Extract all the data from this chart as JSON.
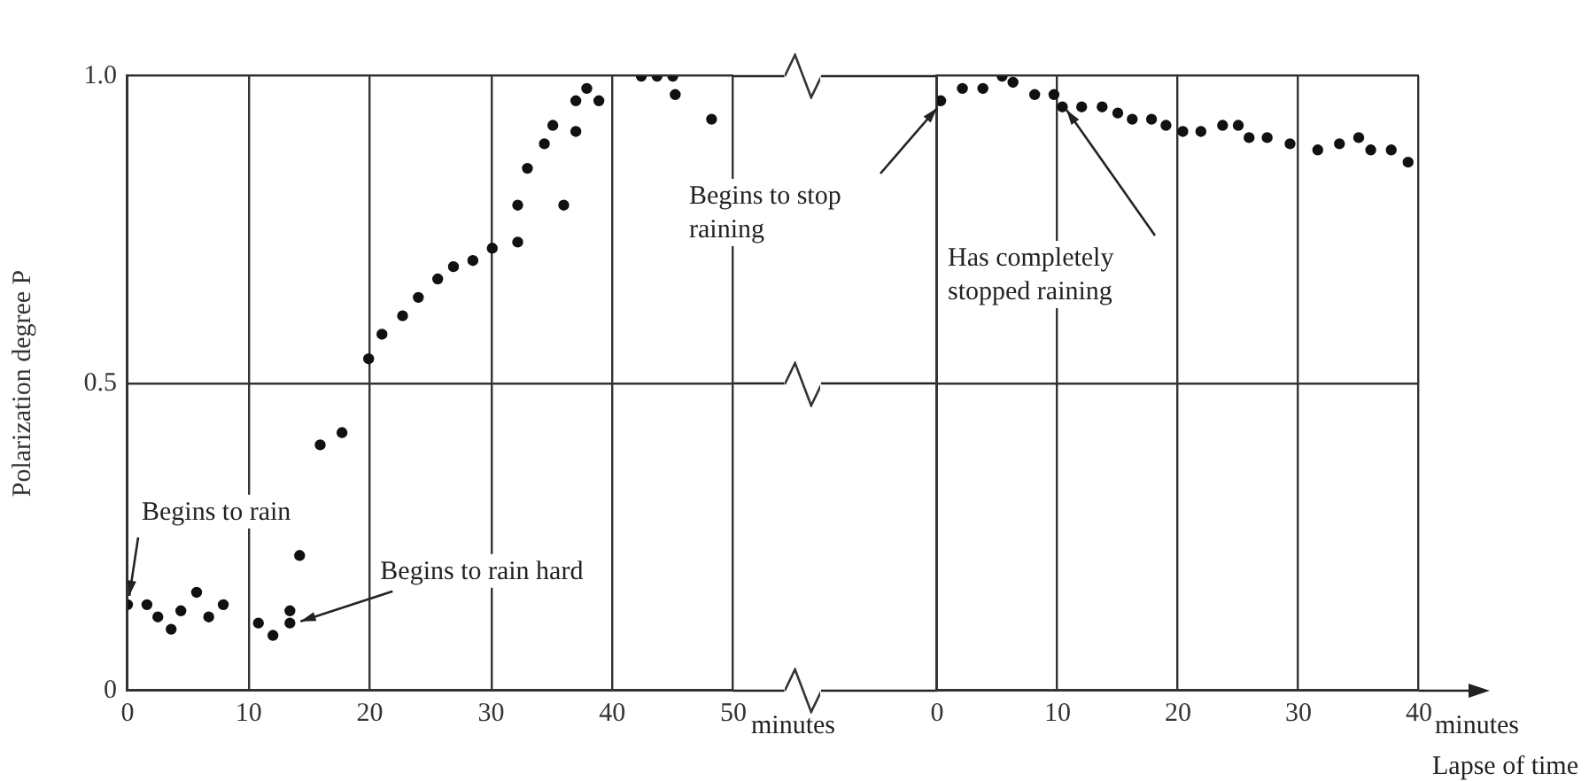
{
  "chart_data": [
    {
      "type": "scatter",
      "ylabel": "Polarization degree P",
      "xlabel": "minutes",
      "color": "#111111",
      "marker": "circle",
      "grid": true,
      "x": [
        0,
        1.6,
        2.5,
        3.6,
        4.4,
        5.7,
        6.7,
        7.9,
        10.8,
        12,
        13.4,
        13.4,
        14.2,
        15.9,
        17.7,
        19.9,
        21,
        22.7,
        24,
        25.6,
        26.9,
        28.5,
        30.1,
        32.2,
        32.2,
        33,
        34.4,
        35.1,
        36,
        37,
        37,
        37.9,
        38.9,
        42.4,
        43.7,
        45,
        45.2,
        48.2
      ],
      "values": [
        0.14,
        0.14,
        0.12,
        0.1,
        0.13,
        0.16,
        0.12,
        0.14,
        0.11,
        0.09,
        0.13,
        0.11,
        0.22,
        0.4,
        0.42,
        0.54,
        0.58,
        0.61,
        0.64,
        0.67,
        0.69,
        0.7,
        0.72,
        0.73,
        0.79,
        0.85,
        0.89,
        0.92,
        0.79,
        0.91,
        0.96,
        0.98,
        0.96,
        1.0,
        1.0,
        1.0,
        0.97,
        0.93
      ],
      "xlim": [
        0,
        50
      ],
      "xticks": [
        0,
        10,
        20,
        30,
        40,
        50
      ],
      "ylim": [
        0,
        1
      ],
      "yticks": [
        0,
        0.5,
        {
          "value": 1,
          "label": "1.0"
        }
      ],
      "annotations": [
        {
          "text": "Begins to rain",
          "x": 0,
          "y": 0.14
        },
        {
          "text": "Begins to rain hard",
          "x": 13.4,
          "y": 0.11
        }
      ]
    },
    {
      "type": "scatter",
      "xlabel": "minutes",
      "color": "#111111",
      "marker": "circle",
      "grid": true,
      "tick_labels": "x",
      "x": [
        0.3,
        2.1,
        3.8,
        5.4,
        6.3,
        8.1,
        9.7,
        10.4,
        12,
        13.7,
        15,
        16.2,
        17.8,
        19,
        20.4,
        21.9,
        23.7,
        25,
        25.9,
        27.4,
        29.3,
        31.6,
        33.4,
        35,
        36,
        37.7,
        39.1
      ],
      "values": [
        0.96,
        0.98,
        0.98,
        1.0,
        0.99,
        0.97,
        0.97,
        0.95,
        0.95,
        0.95,
        0.94,
        0.93,
        0.93,
        0.92,
        0.91,
        0.91,
        0.92,
        0.92,
        0.9,
        0.9,
        0.89,
        0.88,
        0.89,
        0.9,
        0.88,
        0.88,
        0.86
      ],
      "xlim": [
        0,
        40
      ],
      "xticks": [
        0,
        10,
        20,
        30,
        40
      ],
      "ylim": [
        0,
        1
      ],
      "yticks": [
        0,
        0.5,
        1
      ],
      "annotations": [
        "Begins to stop raining",
        "Has completely stopped raining",
        "Lapse of time"
      ]
    }
  ]
}
